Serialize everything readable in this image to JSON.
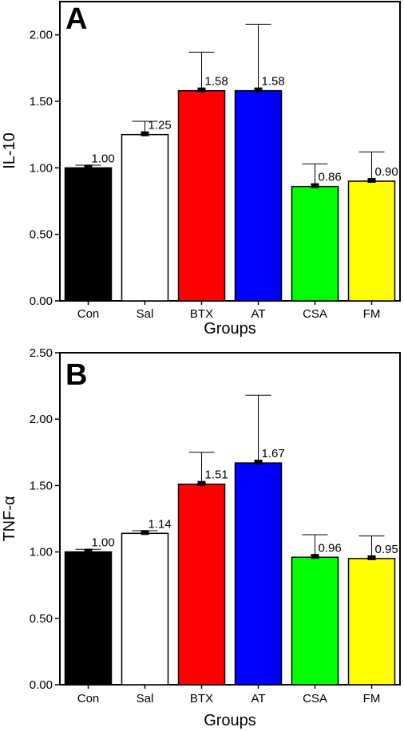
{
  "chart_data": [
    {
      "panel": "A",
      "type": "bar",
      "xlabel": "Groups",
      "ylabel": "IL-10",
      "ylim": [
        0,
        2.25
      ],
      "yticks": [
        "0.00",
        "0.50",
        "1.00",
        "1.50",
        "2.00"
      ],
      "categories": [
        "Con",
        "Sal",
        "BTX",
        "AT",
        "CSA",
        "FM"
      ],
      "values": [
        1.0,
        1.25,
        1.58,
        1.58,
        0.86,
        0.9
      ],
      "error_upper": [
        1.02,
        1.35,
        1.87,
        2.08,
        1.03,
        1.12
      ],
      "value_labels": [
        "1.00",
        "1.25",
        "1.58",
        "1.58",
        "0.86",
        "0.90"
      ],
      "colors": [
        "#000000",
        "#ffffff",
        "#ff0000",
        "#0000ff",
        "#00ff00",
        "#ffff00"
      ]
    },
    {
      "panel": "B",
      "type": "bar",
      "xlabel": "Groups",
      "ylabel": "TNF-α",
      "ylim": [
        0,
        2.5
      ],
      "yticks": [
        "0.00",
        "0.50",
        "1.00",
        "1.50",
        "2.00",
        "2.50"
      ],
      "categories": [
        "Con",
        "Sal",
        "BTX",
        "AT",
        "CSA",
        "FM"
      ],
      "values": [
        1.0,
        1.14,
        1.51,
        1.67,
        0.96,
        0.95
      ],
      "error_upper": [
        1.02,
        1.16,
        1.75,
        2.18,
        1.13,
        1.12
      ],
      "value_labels": [
        "1.00",
        "1.14",
        "1.51",
        "1.67",
        "0.96",
        "0.95"
      ],
      "colors": [
        "#000000",
        "#ffffff",
        "#ff0000",
        "#0000ff",
        "#00ff00",
        "#ffff00"
      ]
    }
  ]
}
